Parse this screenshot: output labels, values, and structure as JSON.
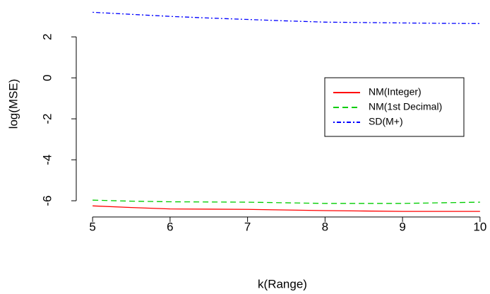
{
  "chart_data": {
    "type": "line",
    "x_label": "k(Range)",
    "y_label": "log(MSE)",
    "x": [
      5,
      5.5,
      6,
      6.5,
      7,
      7.5,
      8,
      8.5,
      9,
      9.5,
      10
    ],
    "series": [
      {
        "name": "NM(Integer)",
        "color": "#ff0000",
        "dash": "none",
        "values": [
          -6.25,
          -6.33,
          -6.4,
          -6.41,
          -6.42,
          -6.45,
          -6.48,
          -6.5,
          -6.52,
          -6.52,
          -6.52
        ]
      },
      {
        "name": "NM(1st Decimal)",
        "color": "#00cd00",
        "dash": "8 5",
        "values": [
          -5.97,
          -6.02,
          -6.05,
          -6.06,
          -6.07,
          -6.1,
          -6.13,
          -6.13,
          -6.13,
          -6.1,
          -6.07
        ]
      },
      {
        "name": "SD(M+)",
        "color": "#0000ff",
        "dash": "2 3 6 3",
        "values": [
          3.2,
          3.1,
          3.0,
          2.92,
          2.85,
          2.78,
          2.72,
          2.7,
          2.68,
          2.66,
          2.65
        ]
      }
    ],
    "xlim": [
      4.78,
      10.22
    ],
    "ylim": [
      -6.55,
      3.8
    ],
    "xticks": [
      5,
      6,
      7,
      8,
      9,
      10
    ],
    "yticks": [
      -6,
      -4,
      -2,
      0,
      2
    ],
    "legend_position": "right"
  }
}
